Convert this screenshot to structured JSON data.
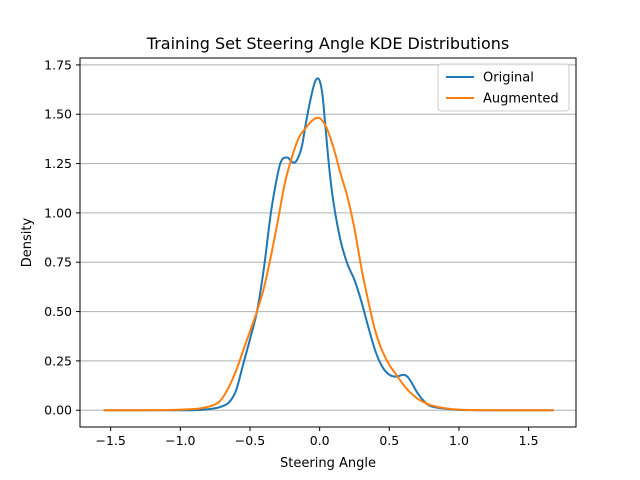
{
  "chart_data": {
    "type": "line",
    "title": "Training Set Steering Angle KDE Distributions",
    "xlabel": "Steering Angle",
    "ylabel": "Density",
    "xlim": [
      -1.72,
      1.84
    ],
    "ylim": [
      -0.085,
      1.785
    ],
    "xticks": [
      -1.5,
      -1.0,
      -0.5,
      0.0,
      0.5,
      1.0,
      1.5
    ],
    "xtick_labels": [
      "−1.5",
      "−1.0",
      "−0.5",
      "0.0",
      "0.5",
      "1.0",
      "1.5"
    ],
    "yticks": [
      0.0,
      0.25,
      0.5,
      0.75,
      1.0,
      1.25,
      1.5,
      1.75
    ],
    "ytick_labels": [
      "0.00",
      "0.25",
      "0.50",
      "0.75",
      "1.00",
      "1.25",
      "1.50",
      "1.75"
    ],
    "grid": "horizontal",
    "legend_position": "top-right",
    "series": [
      {
        "name": "Original",
        "color": "#1f77b4",
        "x": [
          -1.55,
          -1.2,
          -1.0,
          -0.85,
          -0.75,
          -0.7,
          -0.65,
          -0.6,
          -0.55,
          -0.5,
          -0.45,
          -0.4,
          -0.35,
          -0.3,
          -0.27,
          -0.23,
          -0.2,
          -0.17,
          -0.13,
          -0.1,
          -0.07,
          -0.04,
          -0.02,
          0.0,
          0.02,
          0.04,
          0.07,
          0.1,
          0.15,
          0.2,
          0.25,
          0.3,
          0.35,
          0.4,
          0.45,
          0.5,
          0.55,
          0.6,
          0.63,
          0.66,
          0.7,
          0.75,
          0.8,
          0.9,
          1.0,
          1.2,
          1.5,
          1.68
        ],
        "y": [
          0.0,
          0.0,
          0.0,
          0.002,
          0.01,
          0.02,
          0.04,
          0.1,
          0.23,
          0.36,
          0.5,
          0.72,
          1.0,
          1.2,
          1.27,
          1.28,
          1.26,
          1.26,
          1.33,
          1.45,
          1.56,
          1.65,
          1.68,
          1.67,
          1.6,
          1.45,
          1.22,
          1.05,
          0.86,
          0.74,
          0.66,
          0.55,
          0.42,
          0.3,
          0.22,
          0.18,
          0.17,
          0.18,
          0.17,
          0.14,
          0.09,
          0.045,
          0.02,
          0.008,
          0.002,
          0.0,
          0.0,
          0.0
        ]
      },
      {
        "name": "Augmented",
        "color": "#ff7f0e",
        "x": [
          -1.55,
          -1.2,
          -1.0,
          -0.85,
          -0.75,
          -0.7,
          -0.65,
          -0.6,
          -0.55,
          -0.5,
          -0.45,
          -0.4,
          -0.35,
          -0.3,
          -0.25,
          -0.2,
          -0.15,
          -0.1,
          -0.05,
          0.0,
          0.05,
          0.1,
          0.15,
          0.2,
          0.25,
          0.3,
          0.35,
          0.4,
          0.45,
          0.5,
          0.55,
          0.6,
          0.65,
          0.7,
          0.75,
          0.8,
          0.9,
          1.0,
          1.2,
          1.5,
          1.68
        ],
        "y": [
          0.0,
          0.0,
          0.003,
          0.01,
          0.03,
          0.06,
          0.12,
          0.2,
          0.3,
          0.4,
          0.5,
          0.62,
          0.78,
          0.96,
          1.15,
          1.28,
          1.38,
          1.43,
          1.47,
          1.48,
          1.43,
          1.33,
          1.2,
          1.08,
          0.92,
          0.72,
          0.55,
          0.4,
          0.3,
          0.23,
          0.18,
          0.13,
          0.09,
          0.06,
          0.04,
          0.025,
          0.01,
          0.003,
          0.0,
          0.0,
          0.0
        ]
      }
    ]
  }
}
